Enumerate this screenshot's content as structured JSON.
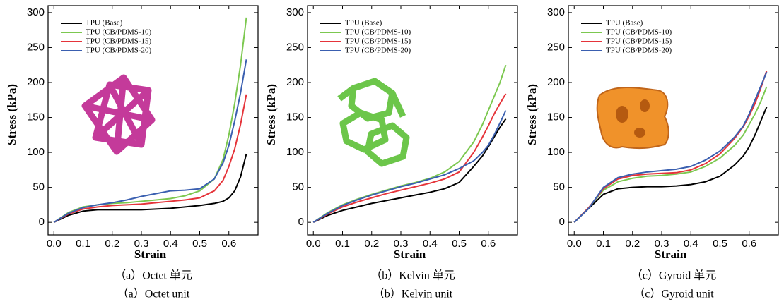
{
  "chart_data": [
    {
      "type": "line",
      "xlabel": "Strain",
      "ylabel": "Stress (kPa)",
      "caption_zh": "（a）Octet 单元",
      "caption_en": "（a）Octet unit",
      "xlim": [
        -0.02,
        0.7
      ],
      "ylim": [
        -18,
        310
      ],
      "xticks": [
        {
          "value": 0,
          "label": "0.0"
        },
        0.1,
        0.2,
        0.3,
        0.4,
        0.5,
        0.6
      ],
      "yticks": [
        0,
        50,
        100,
        150,
        200,
        250,
        300
      ],
      "legend": "upper left",
      "x": [
        0,
        0.05,
        0.1,
        0.15,
        0.2,
        0.25,
        0.3,
        0.35,
        0.4,
        0.45,
        0.5,
        0.55,
        0.58,
        0.6,
        0.62,
        0.64,
        0.66
      ],
      "series": [
        {
          "name": "TPU (Base)",
          "color": "#000000",
          "values": [
            0,
            10,
            16,
            18,
            18,
            18,
            18,
            19,
            20,
            22,
            24,
            27,
            30,
            35,
            45,
            65,
            98
          ]
        },
        {
          "name": "TPU (CB/PDMS-10)",
          "color": "#7cc850",
          "values": [
            0,
            14,
            22,
            25,
            27,
            28,
            30,
            32,
            34,
            38,
            45,
            62,
            90,
            125,
            170,
            225,
            293
          ]
        },
        {
          "name": "TPU (CB/PDMS-15)",
          "color": "#e5343a",
          "values": [
            0,
            12,
            19,
            22,
            24,
            25,
            26,
            28,
            30,
            32,
            35,
            45,
            60,
            80,
            105,
            140,
            183
          ]
        },
        {
          "name": "TPU (CB/PDMS-20)",
          "color": "#3a5fb0",
          "values": [
            0,
            13,
            21,
            25,
            28,
            32,
            37,
            41,
            45,
            46,
            48,
            62,
            85,
            110,
            145,
            185,
            233
          ]
        }
      ]
    },
    {
      "type": "line",
      "xlabel": "Strain",
      "ylabel": "Stress (kPa)",
      "caption_zh": "（b）Kelvin 单元",
      "caption_en": "（b）Kelvin unit",
      "xlim": [
        -0.02,
        0.7
      ],
      "ylim": [
        -18,
        310
      ],
      "xticks": [
        {
          "value": 0,
          "label": "0.0"
        },
        0.1,
        0.2,
        0.3,
        0.4,
        0.5,
        0.6
      ],
      "yticks": [
        0,
        50,
        100,
        150,
        200,
        250,
        300
      ],
      "legend": "upper left",
      "x": [
        0,
        0.05,
        0.1,
        0.15,
        0.2,
        0.25,
        0.3,
        0.35,
        0.4,
        0.45,
        0.5,
        0.55,
        0.58,
        0.6,
        0.62,
        0.64,
        0.66
      ],
      "series": [
        {
          "name": "TPU (Base)",
          "color": "#000000",
          "values": [
            0,
            10,
            17,
            22,
            27,
            31,
            35,
            39,
            43,
            48,
            57,
            80,
            95,
            108,
            122,
            136,
            148
          ]
        },
        {
          "name": "TPU (CB/PDMS-10)",
          "color": "#7cc850",
          "values": [
            0,
            14,
            25,
            33,
            40,
            46,
            52,
            57,
            63,
            72,
            87,
            115,
            140,
            160,
            180,
            200,
            225
          ]
        },
        {
          "name": "TPU (CB/PDMS-15)",
          "color": "#e5343a",
          "values": [
            0,
            12,
            22,
            29,
            35,
            41,
            46,
            51,
            56,
            62,
            72,
            100,
            122,
            138,
            155,
            170,
            184
          ]
        },
        {
          "name": "TPU (CB/PDMS-20)",
          "color": "#3a5fb0",
          "values": [
            0,
            13,
            24,
            32,
            39,
            45,
            51,
            56,
            62,
            68,
            77,
            88,
            100,
            110,
            125,
            142,
            160
          ]
        }
      ]
    },
    {
      "type": "line",
      "xlabel": "Strain",
      "ylabel": "Stress (kPa)",
      "caption_zh": "（c）Gyroid 单元",
      "caption_en": "（c）Gyroid unit",
      "xlim": [
        -0.02,
        0.7
      ],
      "ylim": [
        -18,
        310
      ],
      "xticks": [
        {
          "value": 0,
          "label": "0.0"
        },
        0.1,
        0.2,
        0.3,
        0.4,
        0.5,
        0.6
      ],
      "yticks": [
        0,
        50,
        100,
        150,
        200,
        250,
        300
      ],
      "legend": "upper left",
      "x": [
        0,
        0.05,
        0.1,
        0.15,
        0.2,
        0.25,
        0.3,
        0.35,
        0.4,
        0.45,
        0.5,
        0.55,
        0.58,
        0.6,
        0.62,
        0.64,
        0.66
      ],
      "series": [
        {
          "name": "TPU (Base)",
          "color": "#000000",
          "values": [
            0,
            20,
            40,
            48,
            50,
            51,
            51,
            52,
            54,
            58,
            66,
            82,
            95,
            108,
            125,
            145,
            165
          ]
        },
        {
          "name": "TPU (CB/PDMS-10)",
          "color": "#7cc850",
          "values": [
            0,
            21,
            46,
            58,
            63,
            66,
            67,
            69,
            72,
            80,
            92,
            110,
            125,
            140,
            155,
            173,
            194
          ]
        },
        {
          "name": "TPU (CB/PDMS-15)",
          "color": "#e5343a",
          "values": [
            0,
            21,
            48,
            62,
            67,
            69,
            70,
            71,
            75,
            84,
            98,
            120,
            137,
            152,
            170,
            192,
            217
          ]
        },
        {
          "name": "TPU (CB/PDMS-20)",
          "color": "#3a5fb0",
          "values": [
            0,
            20,
            50,
            64,
            69,
            72,
            74,
            76,
            80,
            89,
            102,
            122,
            138,
            155,
            175,
            195,
            215
          ]
        }
      ]
    }
  ]
}
